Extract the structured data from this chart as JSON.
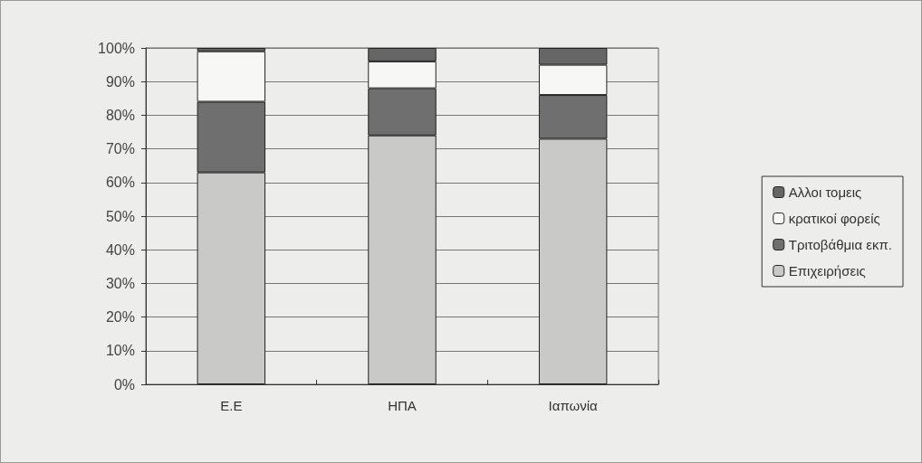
{
  "chart_data": {
    "type": "bar",
    "stacked": true,
    "categories": [
      "Ε.Ε",
      "ΗΠΑ",
      "Ιαπωνία"
    ],
    "series": [
      {
        "name": "Επιχειρήσεις",
        "color": "#c9c9c7",
        "values": [
          63,
          74,
          73
        ]
      },
      {
        "name": "Τριτοβάθμια εκπ.",
        "color": "#6f6f6f",
        "values": [
          21,
          14,
          13
        ]
      },
      {
        "name": "κρατικοί φορείς",
        "color": "#f7f7f5",
        "values": [
          15,
          8,
          9
        ]
      },
      {
        "name": "Αλλοι τομεις",
        "color": "#666666",
        "values": [
          1,
          4,
          5
        ]
      }
    ],
    "ylim": [
      0,
      100
    ],
    "yticks": [
      {
        "value": 0,
        "label": "0%"
      },
      {
        "value": 10,
        "label": "10%"
      },
      {
        "value": 20,
        "label": "20%"
      },
      {
        "value": 30,
        "label": "30%"
      },
      {
        "value": 40,
        "label": "40%"
      },
      {
        "value": 50,
        "label": "50%"
      },
      {
        "value": 60,
        "label": "60%"
      },
      {
        "value": 70,
        "label": "70%"
      },
      {
        "value": 80,
        "label": "80%"
      },
      {
        "value": 90,
        "label": "90%"
      },
      {
        "value": 100,
        "label": "100%"
      }
    ],
    "grid": "y",
    "legend": "right"
  }
}
